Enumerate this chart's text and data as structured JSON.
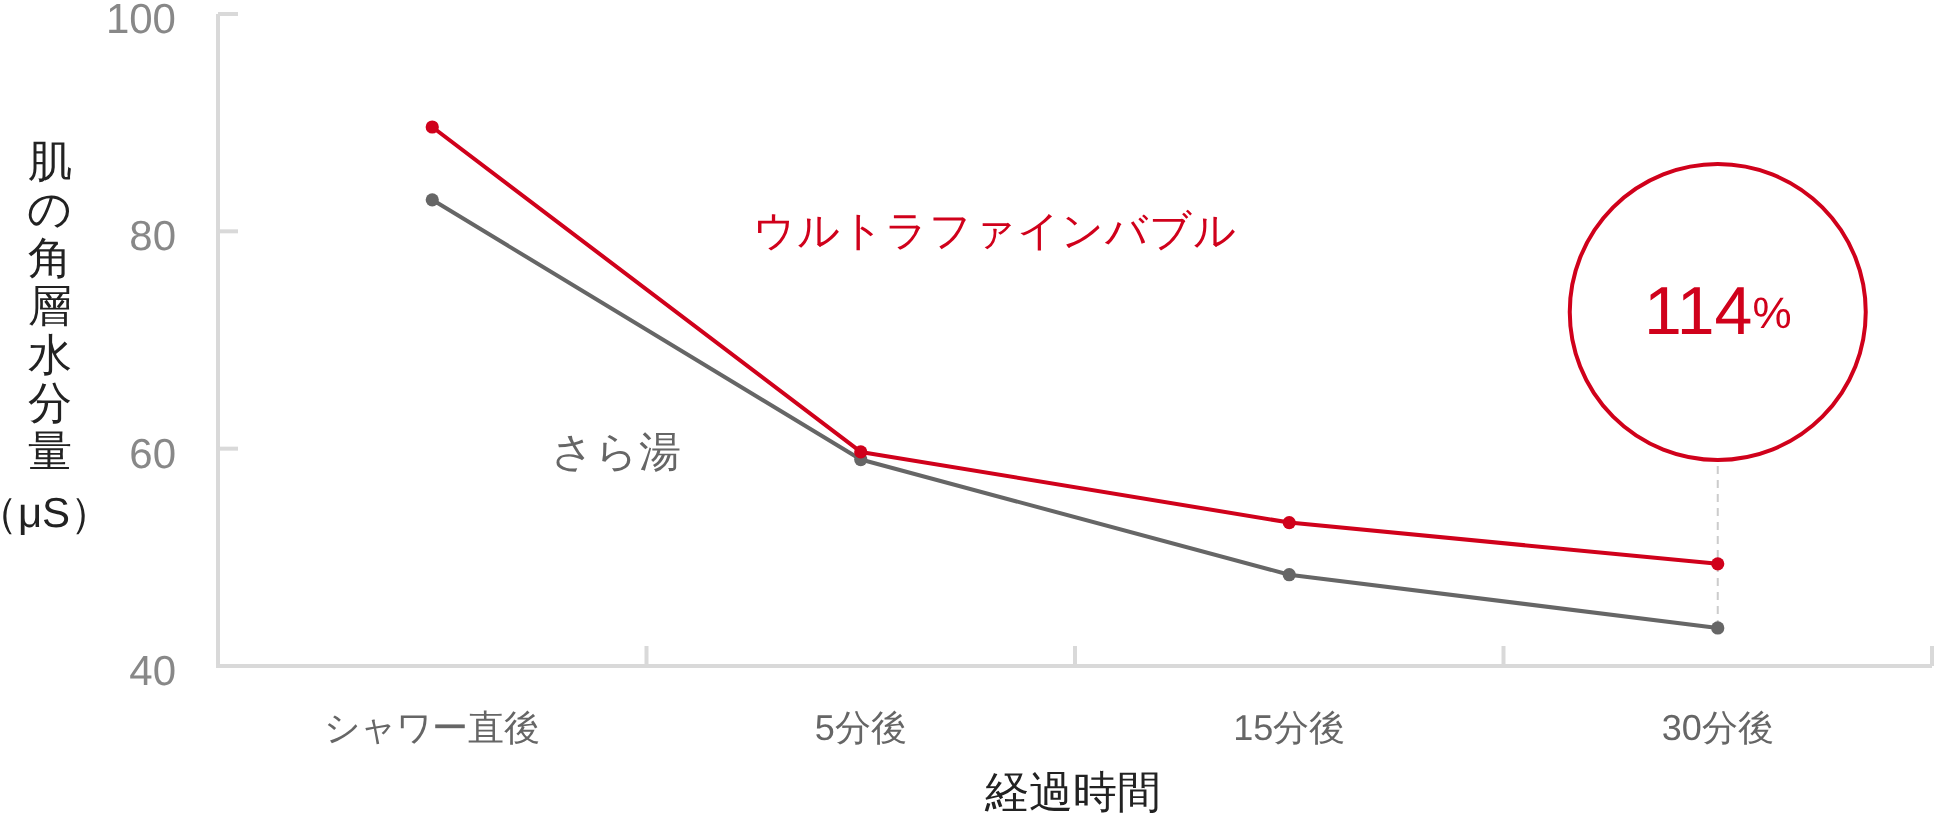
{
  "chart_data": {
    "type": "line",
    "xlabel": "経過時間",
    "ylabel": "肌の角層水分量（μS）",
    "categories": [
      "シャワー直後",
      "5分後",
      "15分後",
      "30分後"
    ],
    "series": [
      {
        "name": "ウルトラファインバブル",
        "color": "#d0011b",
        "values": [
          89.6,
          59.7,
          53.2,
          49.4
        ]
      },
      {
        "name": "さら湯",
        "color": "#666666",
        "values": [
          82.9,
          59.0,
          48.4,
          43.5
        ]
      }
    ],
    "ylim": [
      40,
      100
    ],
    "yticks": [
      40,
      60,
      80,
      100
    ],
    "marker": "circle",
    "line_style": "solid",
    "annotations": [
      "114%"
    ]
  }
}
